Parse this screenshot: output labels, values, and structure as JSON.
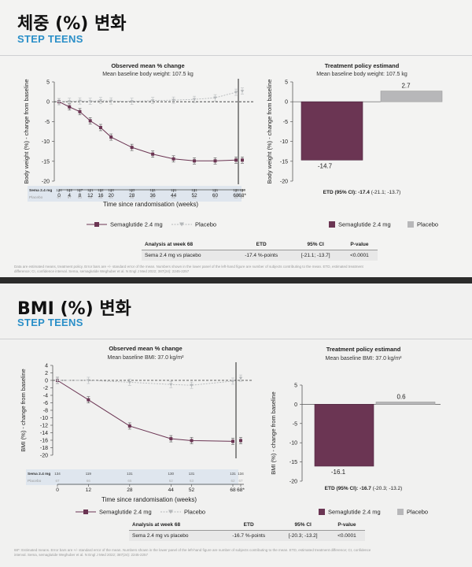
{
  "panels": [
    {
      "title": "체중 (%) 변화",
      "subtitle": "STEP TEENS",
      "chart_data": [
        {
          "type": "line",
          "title": "Observed mean % change",
          "subtitle": "Mean baseline body weight: 107.5 kg",
          "xlabel": "Time since randomisation (weeks)",
          "ylabel": "Body weight (%) - change from baseline",
          "x_ticks": [
            "0",
            "4",
            "8",
            "12",
            "16",
            "20",
            "28",
            "36",
            "44",
            "52",
            "60",
            "68",
            "68*"
          ],
          "ylim": [
            -20,
            5
          ],
          "y_ticks": [
            5,
            0,
            -5,
            -10,
            -15,
            -20
          ],
          "series": [
            {
              "name": "Semaglutide 2.4 mg",
              "color": "#6b3553",
              "x": [
                0,
                4,
                8,
                12,
                16,
                20,
                28,
                36,
                44,
                52,
                60,
                68
              ],
              "values": [
                0,
                -1.3,
                -2.5,
                -4.8,
                -6.5,
                -8.9,
                -11.5,
                -13.2,
                -14.4,
                -14.9,
                -14.9,
                -14.7
              ],
              "extra_point": {
                "x": "68*",
                "value": -14.7
              }
            },
            {
              "name": "Placebo",
              "color": "#b5b8ba",
              "x": [
                0,
                4,
                8,
                12,
                16,
                20,
                28,
                36,
                44,
                52,
                60,
                68
              ],
              "values": [
                0,
                0.1,
                0.2,
                0.1,
                0.3,
                0.2,
                0.1,
                0.3,
                0.4,
                0.6,
                1.0,
                2.4
              ],
              "extra_point": {
                "x": "68*",
                "value": 2.7
              }
            }
          ],
          "n_rows": [
            {
              "label": "Sema 2.4 mg",
              "values": [
                "134",
                "122",
                "127",
                "121",
                "132",
                "128",
                "133",
                "131",
                "131",
                "131",
                "131",
                "131",
                "134"
              ]
            },
            {
              "label": "Placebo",
              "values": [
                "67",
                "67",
                "63",
                "66",
                "66",
                "64",
                "65",
                "63",
                "62",
                "63",
                "64",
                "62",
                "67"
              ]
            }
          ]
        },
        {
          "type": "bar",
          "title": "Treatment policy estimand",
          "subtitle": "Mean baseline body weight: 107.5 kg",
          "ylabel": "Body weight (%) - change from baseline",
          "ylim": [
            -20,
            5
          ],
          "y_ticks": [
            5,
            0,
            -5,
            -10,
            -15,
            -20
          ],
          "categories": [
            "Semaglutide 2.4 mg",
            "Placebo"
          ],
          "values": [
            -14.7,
            2.7
          ],
          "colors": [
            "#6b3553",
            "#b7b7b9"
          ],
          "value_labels": [
            "-14.7",
            "2.7"
          ],
          "etd_prefix": "ETD (95% CI): ",
          "etd_value": "-17.4",
          "etd_ci": " (-21.1; -13.7)"
        }
      ],
      "legend": [
        "Semaglutide 2.4 mg",
        "Placebo"
      ],
      "table": {
        "headers": [
          "Analysis at week 68",
          "ETD",
          "95% CI",
          "P-value"
        ],
        "row": [
          "Sema 2.4 mg vs placebo",
          "-17.4 %-points",
          "[-21.1; -13.7]",
          "<0.0001"
        ]
      },
      "footnote": "Data are estimated means, treatment policy. Error bars are +/- standard error of the mean. Numbers shown in the lower panel of the left-hand figure are number of subjects contributing to the mean. ETD, estimated treatment difference; CI, confidence interval. Sema, semaglutide Weghuber et al. N Engl J Med 2022; 387(24): 2245-2257"
    },
    {
      "title": "BMI (%) 변화",
      "subtitle": "STEP TEENS",
      "chart_data": [
        {
          "type": "line",
          "title": "Observed mean % change",
          "subtitle": "Mean baseline BMI: 37.0 kg/m²",
          "xlabel": "Time since randomisation (weeks)",
          "ylabel": "BMI (%) - change from baseline",
          "x_ticks": [
            "0",
            "12",
            "28",
            "44",
            "52",
            "68",
            "68*"
          ],
          "ylim": [
            -20,
            4
          ],
          "y_ticks": [
            4,
            2,
            0,
            -2,
            -4,
            -6,
            -8,
            -10,
            -12,
            -14,
            -16,
            -18,
            -20
          ],
          "series": [
            {
              "name": "Semaglutide 2.4 mg",
              "color": "#6b3553",
              "x": [
                0,
                12,
                28,
                44,
                52,
                68
              ],
              "values": [
                0,
                -5.2,
                -12.2,
                -15.6,
                -16.1,
                -16.3
              ],
              "extra_point": {
                "x": "68*",
                "value": -16.1
              }
            },
            {
              "name": "Placebo",
              "color": "#b5b8ba",
              "x": [
                0,
                12,
                28,
                44,
                52,
                68
              ],
              "values": [
                0,
                0,
                -0.5,
                -1.1,
                -1.3,
                -0.2
              ],
              "extra_point": {
                "x": "68*",
                "value": 0.6
              }
            }
          ],
          "n_rows": [
            {
              "label": "Sema 2.4 mg",
              "values": [
                "134",
                "119",
                "131",
                "130",
                "131",
                "131",
                "134"
              ]
            },
            {
              "label": "Placebo",
              "values": [
                "67",
                "66",
                "65",
                "62",
                "63",
                "62",
                "67"
              ]
            }
          ]
        },
        {
          "type": "bar",
          "title": "Treatment policy estimand",
          "subtitle": "Mean baseline BMI: 37.0 kg/m²",
          "ylabel": "BMI (%) - change from baseline",
          "ylim": [
            -20,
            5
          ],
          "y_ticks": [
            5,
            0,
            -5,
            -10,
            -15,
            -20
          ],
          "categories": [
            "Semaglutide 2.4 mg",
            "Placebo"
          ],
          "values": [
            -16.1,
            0.6
          ],
          "colors": [
            "#6b3553",
            "#b7b7b9"
          ],
          "value_labels": [
            "-16.1",
            "0.6"
          ],
          "etd_prefix": "ETD (95% CI): ",
          "etd_value": "-16.7",
          "etd_ci": " (-20.3; -13.2)"
        }
      ],
      "legend": [
        "Semaglutide 2.4 mg",
        "Placebo"
      ],
      "table": {
        "headers": [
          "Analysis at week 68",
          "ETD",
          "95% CI",
          "P-value"
        ],
        "row": [
          "Sema 2.4 mg vs placebo",
          "-16.7 %-points",
          "[-20.3; -13.2]",
          "<0.0001"
        ]
      },
      "footnote": "68*: Estimated means. Error bars are +/- standard error of the mean. Numbers shown in the lower panel of the left-hand figure are number of subjects contributing to the mean. ETD, estimated treatment difference; CI, confidence interval. Sema, semaglutide Weghuber et al. N Engl J Med 2022; 387(24): 2245-2257"
    }
  ]
}
